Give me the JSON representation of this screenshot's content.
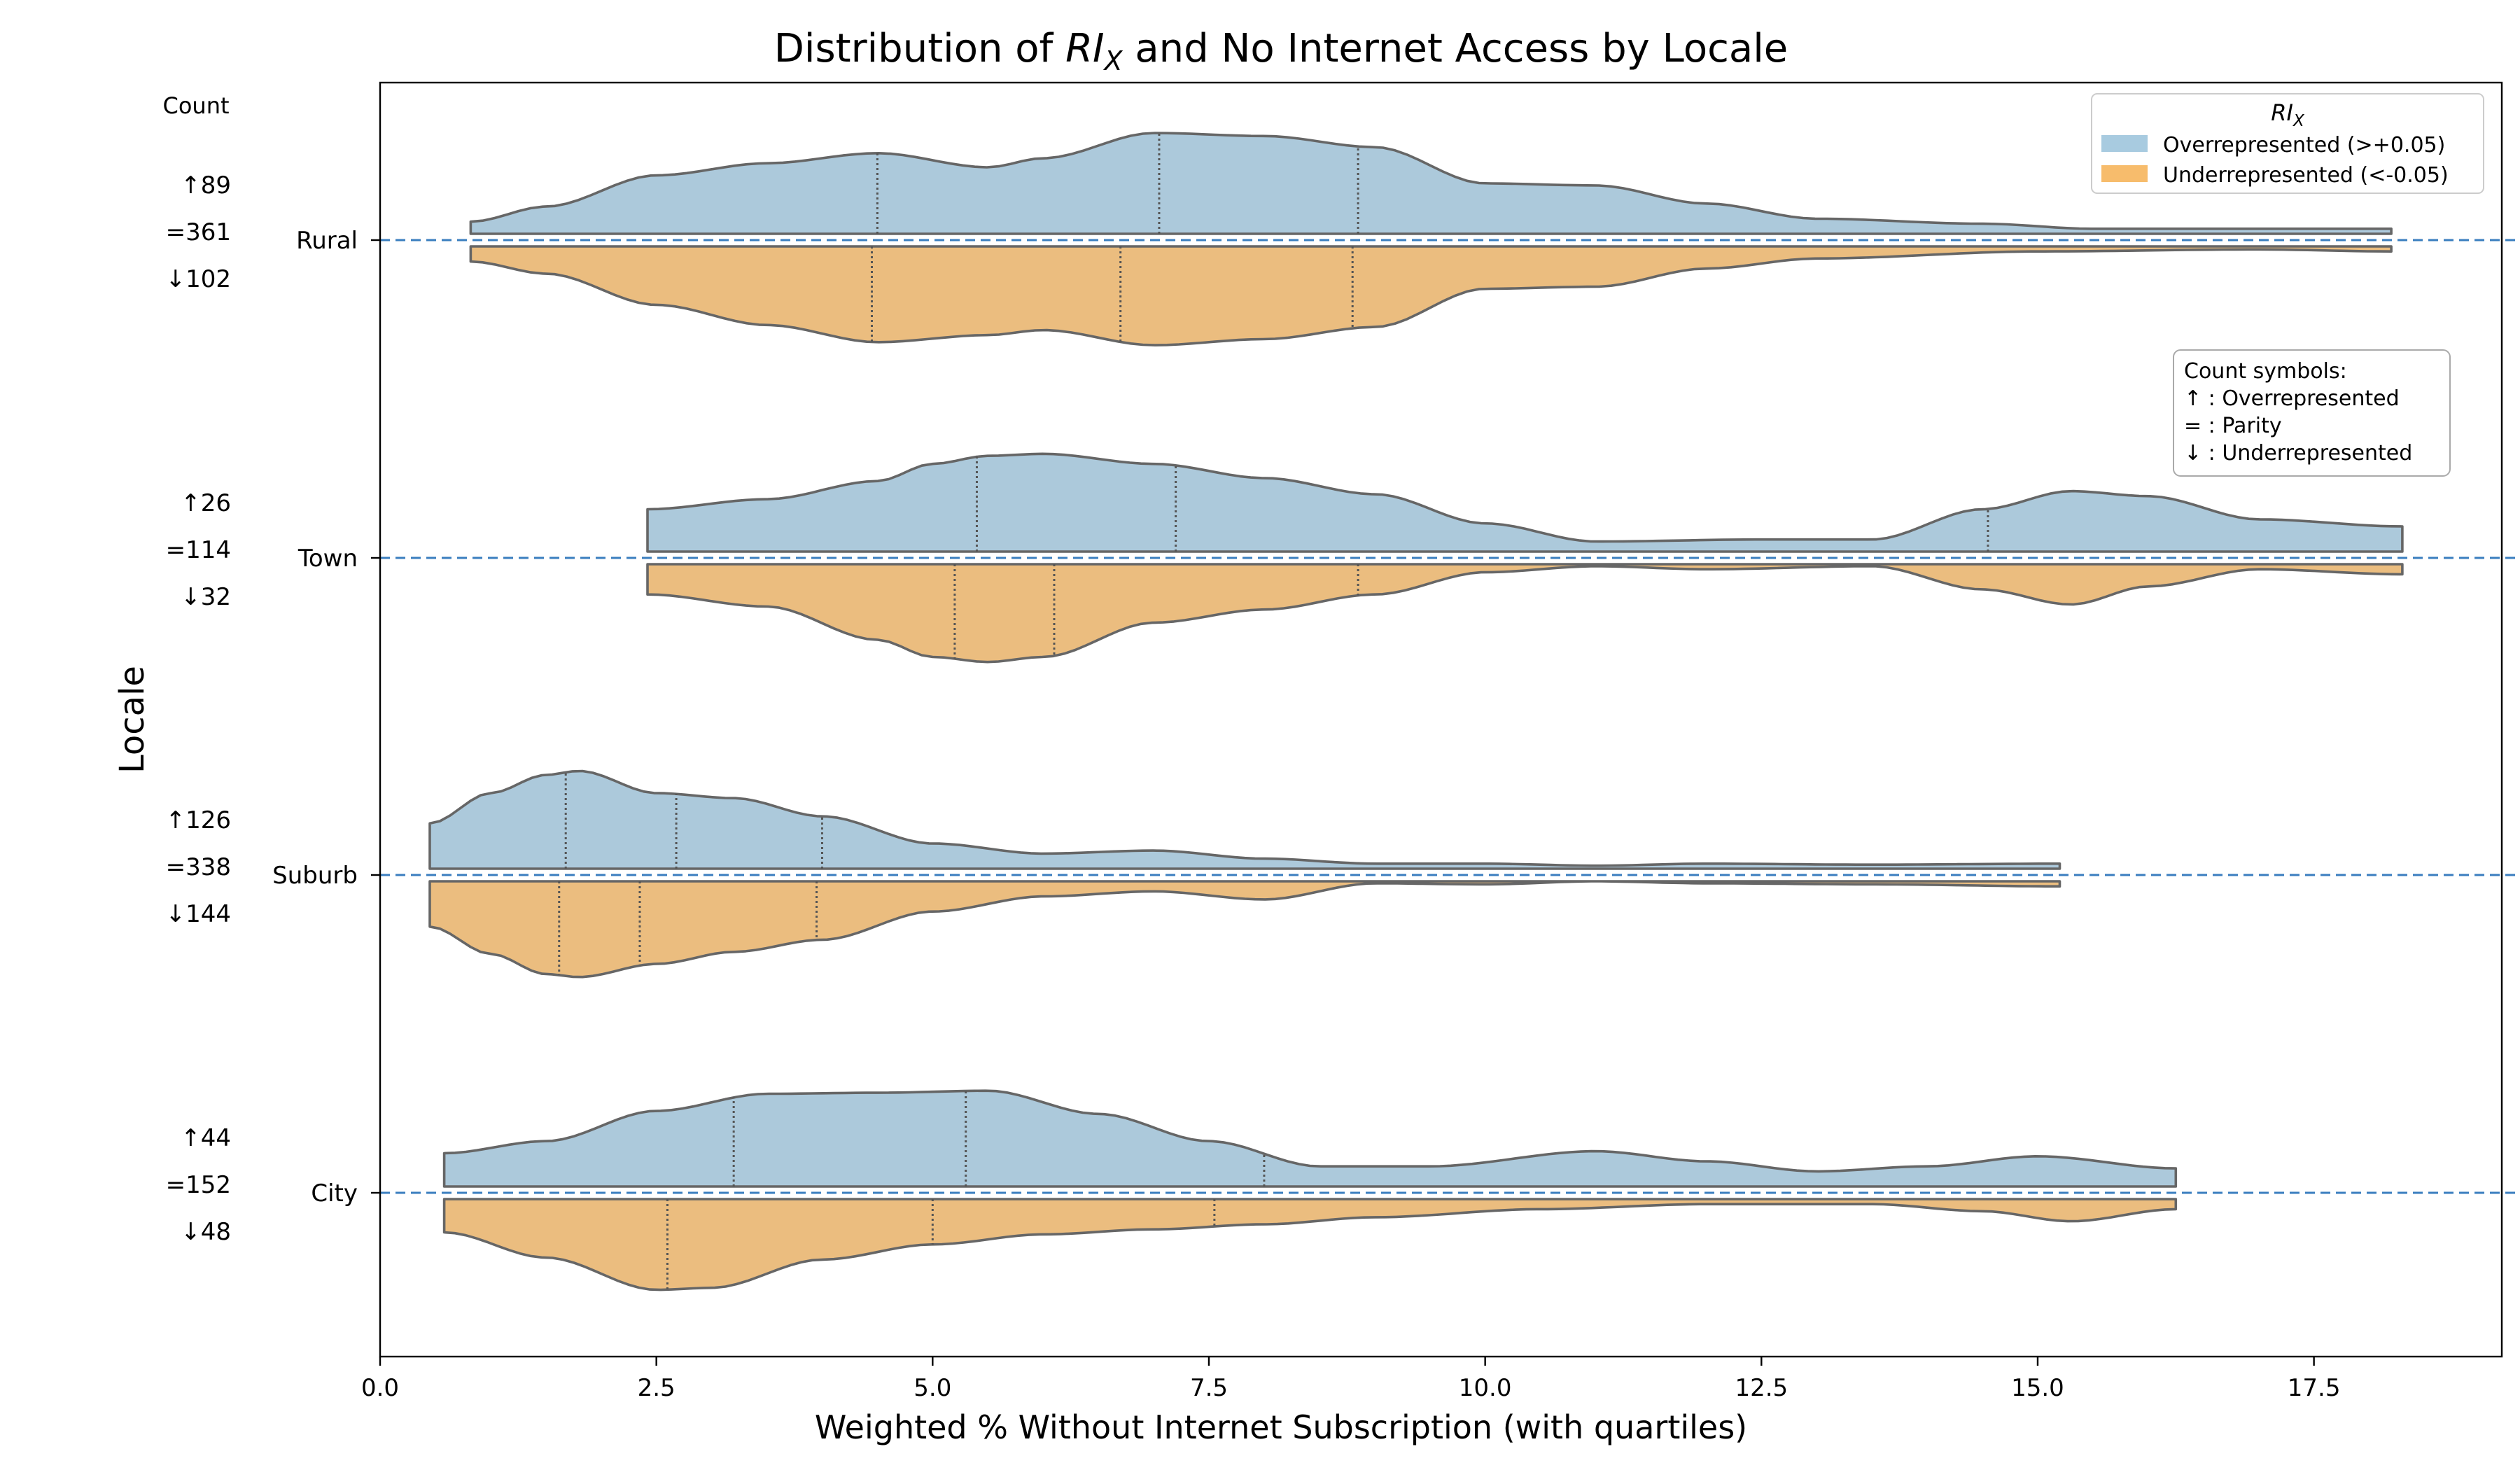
{
  "chart_data": {
    "type": "violin",
    "title_prefix": "Distribution of ",
    "title_math_main": "RI",
    "title_math_sub": "X",
    "title_suffix": " and No Internet Access by Locale",
    "xlabel": "Weighted % Without Internet Subscription (with quartiles)",
    "ylabel": "Locale",
    "xlim": [
      0,
      19.2
    ],
    "xticks": [
      "0.0",
      "2.5",
      "5.0",
      "7.5",
      "10.0",
      "12.5",
      "15.0",
      "17.5"
    ],
    "count_header": "Count",
    "legend": {
      "title_main": "RI",
      "title_sub": "X",
      "entries": [
        {
          "label": "Overrepresented (>+0.05)",
          "color": "#a8cbe0"
        },
        {
          "label": "Underrepresented (<-0.05)",
          "color": "#f7bc6c"
        }
      ]
    },
    "symbol_box": {
      "title": "Count symbols:",
      "lines": [
        "↑ : Overrepresented",
        "= : Parity",
        "↓ : Underrepresented"
      ]
    },
    "colors": {
      "over": "#acc9db",
      "under": "#ebbd7f",
      "outline": "#666666",
      "refline": "#3a7ebf"
    },
    "locales": [
      {
        "name": "Rural",
        "count_over": "↑89",
        "count_parity": "=361",
        "count_under": "↓102",
        "range": [
          0.82,
          18.2
        ],
        "over": {
          "points": [
            [
              0.82,
              0.12
            ],
            [
              1.5,
              0.27
            ],
            [
              2.5,
              0.58
            ],
            [
              3.5,
              0.7
            ],
            [
              4.5,
              0.8
            ],
            [
              5.5,
              0.66
            ],
            [
              6.0,
              0.75
            ],
            [
              7.0,
              1.0
            ],
            [
              8.0,
              0.97
            ],
            [
              9.0,
              0.86
            ],
            [
              10.0,
              0.5
            ],
            [
              11.0,
              0.48
            ],
            [
              12.0,
              0.3
            ],
            [
              13.0,
              0.15
            ],
            [
              14.5,
              0.1
            ],
            [
              15.5,
              0.05
            ],
            [
              17.0,
              0.05
            ],
            [
              18.2,
              0.05
            ]
          ],
          "quartiles": [
            4.5,
            7.05,
            8.85
          ]
        },
        "under": {
          "points": [
            [
              0.82,
              0.15
            ],
            [
              1.5,
              0.27
            ],
            [
              2.5,
              0.58
            ],
            [
              3.5,
              0.78
            ],
            [
              4.5,
              0.95
            ],
            [
              5.5,
              0.88
            ],
            [
              6.0,
              0.83
            ],
            [
              7.0,
              0.98
            ],
            [
              8.0,
              0.92
            ],
            [
              9.0,
              0.8
            ],
            [
              10.0,
              0.42
            ],
            [
              11.0,
              0.4
            ],
            [
              12.0,
              0.22
            ],
            [
              13.0,
              0.12
            ],
            [
              15.0,
              0.05
            ],
            [
              17.0,
              0.03
            ],
            [
              18.2,
              0.05
            ]
          ],
          "quartiles": [
            4.45,
            6.7,
            8.8
          ]
        }
      },
      {
        "name": "Town",
        "count_over": "↑26",
        "count_parity": "=114",
        "count_under": "↓32",
        "range": [
          2.42,
          18.3
        ],
        "over": {
          "points": [
            [
              2.42,
              0.42
            ],
            [
              3.5,
              0.52
            ],
            [
              4.5,
              0.7
            ],
            [
              5.0,
              0.87
            ],
            [
              5.5,
              0.95
            ],
            [
              6.0,
              0.97
            ],
            [
              7.0,
              0.87
            ],
            [
              8.0,
              0.73
            ],
            [
              9.0,
              0.57
            ],
            [
              10.0,
              0.28
            ],
            [
              11.0,
              0.1
            ],
            [
              12.5,
              0.12
            ],
            [
              13.5,
              0.12
            ],
            [
              14.5,
              0.42
            ],
            [
              15.3,
              0.6
            ],
            [
              16.0,
              0.55
            ],
            [
              17.0,
              0.32
            ],
            [
              18.3,
              0.25
            ]
          ],
          "quartiles": [
            5.4,
            7.2,
            14.55
          ]
        },
        "under": {
          "points": [
            [
              2.42,
              0.3
            ],
            [
              3.5,
              0.42
            ],
            [
              4.5,
              0.75
            ],
            [
              5.0,
              0.92
            ],
            [
              5.5,
              0.97
            ],
            [
              6.0,
              0.92
            ],
            [
              7.0,
              0.58
            ],
            [
              8.0,
              0.45
            ],
            [
              9.0,
              0.3
            ],
            [
              10.0,
              0.08
            ],
            [
              11.0,
              0.02
            ],
            [
              12.0,
              0.05
            ],
            [
              13.5,
              0.02
            ],
            [
              14.5,
              0.25
            ],
            [
              15.3,
              0.4
            ],
            [
              16.0,
              0.22
            ],
            [
              17.0,
              0.05
            ],
            [
              18.3,
              0.1
            ]
          ],
          "quartiles": [
            5.2,
            6.1,
            8.85
          ]
        }
      },
      {
        "name": "Suburb",
        "count_over": "↑126",
        "count_parity": "=338",
        "count_under": "↓144",
        "range": [
          0.45,
          15.2
        ],
        "over": {
          "points": [
            [
              0.45,
              0.45
            ],
            [
              1.0,
              0.75
            ],
            [
              1.5,
              0.93
            ],
            [
              1.8,
              0.97
            ],
            [
              2.5,
              0.75
            ],
            [
              3.2,
              0.7
            ],
            [
              4.0,
              0.52
            ],
            [
              5.0,
              0.25
            ],
            [
              6.0,
              0.15
            ],
            [
              7.0,
              0.18
            ],
            [
              8.0,
              0.1
            ],
            [
              9.0,
              0.05
            ],
            [
              10.0,
              0.05
            ],
            [
              11.0,
              0.03
            ],
            [
              12.0,
              0.05
            ],
            [
              13.5,
              0.04
            ],
            [
              15.2,
              0.05
            ]
          ],
          "quartiles": [
            1.68,
            2.68,
            4.0
          ]
        },
        "under": {
          "points": [
            [
              0.45,
              0.45
            ],
            [
              1.0,
              0.72
            ],
            [
              1.5,
              0.92
            ],
            [
              1.8,
              0.95
            ],
            [
              2.5,
              0.82
            ],
            [
              3.2,
              0.7
            ],
            [
              4.0,
              0.58
            ],
            [
              5.0,
              0.3
            ],
            [
              6.0,
              0.15
            ],
            [
              7.0,
              0.1
            ],
            [
              8.0,
              0.18
            ],
            [
              9.0,
              0.02
            ],
            [
              10.0,
              0.03
            ],
            [
              11.0,
              0.0
            ],
            [
              12.0,
              0.02
            ],
            [
              13.5,
              0.03
            ],
            [
              15.2,
              0.05
            ]
          ],
          "quartiles": [
            1.62,
            2.35,
            3.95
          ]
        }
      },
      {
        "name": "City",
        "count_over": "↑44",
        "count_parity": "=152",
        "count_under": "↓48",
        "range": [
          0.58,
          16.25
        ],
        "over": {
          "points": [
            [
              0.58,
              0.33
            ],
            [
              1.5,
              0.45
            ],
            [
              2.5,
              0.75
            ],
            [
              3.5,
              0.92
            ],
            [
              4.5,
              0.93
            ],
            [
              5.5,
              0.95
            ],
            [
              6.5,
              0.72
            ],
            [
              7.5,
              0.45
            ],
            [
              8.5,
              0.2
            ],
            [
              9.5,
              0.2
            ],
            [
              11.0,
              0.35
            ],
            [
              12.0,
              0.25
            ],
            [
              13.0,
              0.15
            ],
            [
              14.0,
              0.2
            ],
            [
              15.0,
              0.3
            ],
            [
              16.25,
              0.18
            ]
          ],
          "quartiles": [
            3.2,
            5.3,
            8.0
          ]
        },
        "under": {
          "points": [
            [
              0.58,
              0.33
            ],
            [
              1.5,
              0.58
            ],
            [
              2.5,
              0.9
            ],
            [
              3.0,
              0.88
            ],
            [
              4.0,
              0.6
            ],
            [
              5.0,
              0.45
            ],
            [
              6.0,
              0.35
            ],
            [
              7.0,
              0.3
            ],
            [
              8.0,
              0.25
            ],
            [
              9.0,
              0.18
            ],
            [
              10.5,
              0.1
            ],
            [
              12.0,
              0.05
            ],
            [
              13.5,
              0.05
            ],
            [
              14.5,
              0.12
            ],
            [
              15.3,
              0.22
            ],
            [
              16.25,
              0.1
            ]
          ],
          "quartiles": [
            2.6,
            5.0,
            7.55
          ]
        }
      }
    ]
  }
}
